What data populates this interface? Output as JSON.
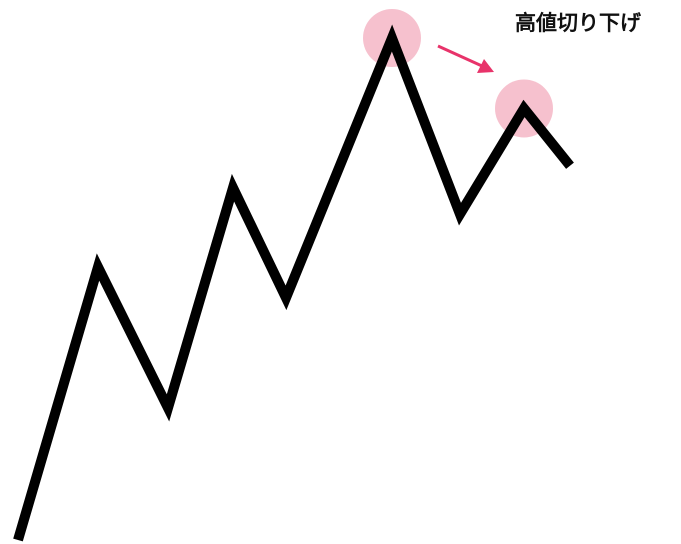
{
  "annotation": {
    "label": "高値切り下げ"
  },
  "colors": {
    "line": "#000000",
    "highlight": "#f4b6c6",
    "arrow": "#e8336a"
  },
  "price_path": {
    "points": [
      [
        0,
        0
      ],
      [
        1,
        6.2
      ],
      [
        2,
        3.0
      ],
      [
        3,
        8.0
      ],
      [
        4,
        5.5
      ],
      [
        5,
        11.4
      ],
      [
        6,
        7.4
      ],
      [
        7,
        9.8
      ],
      [
        8,
        8.5
      ]
    ],
    "highlighted_peaks": [
      5,
      7
    ]
  }
}
